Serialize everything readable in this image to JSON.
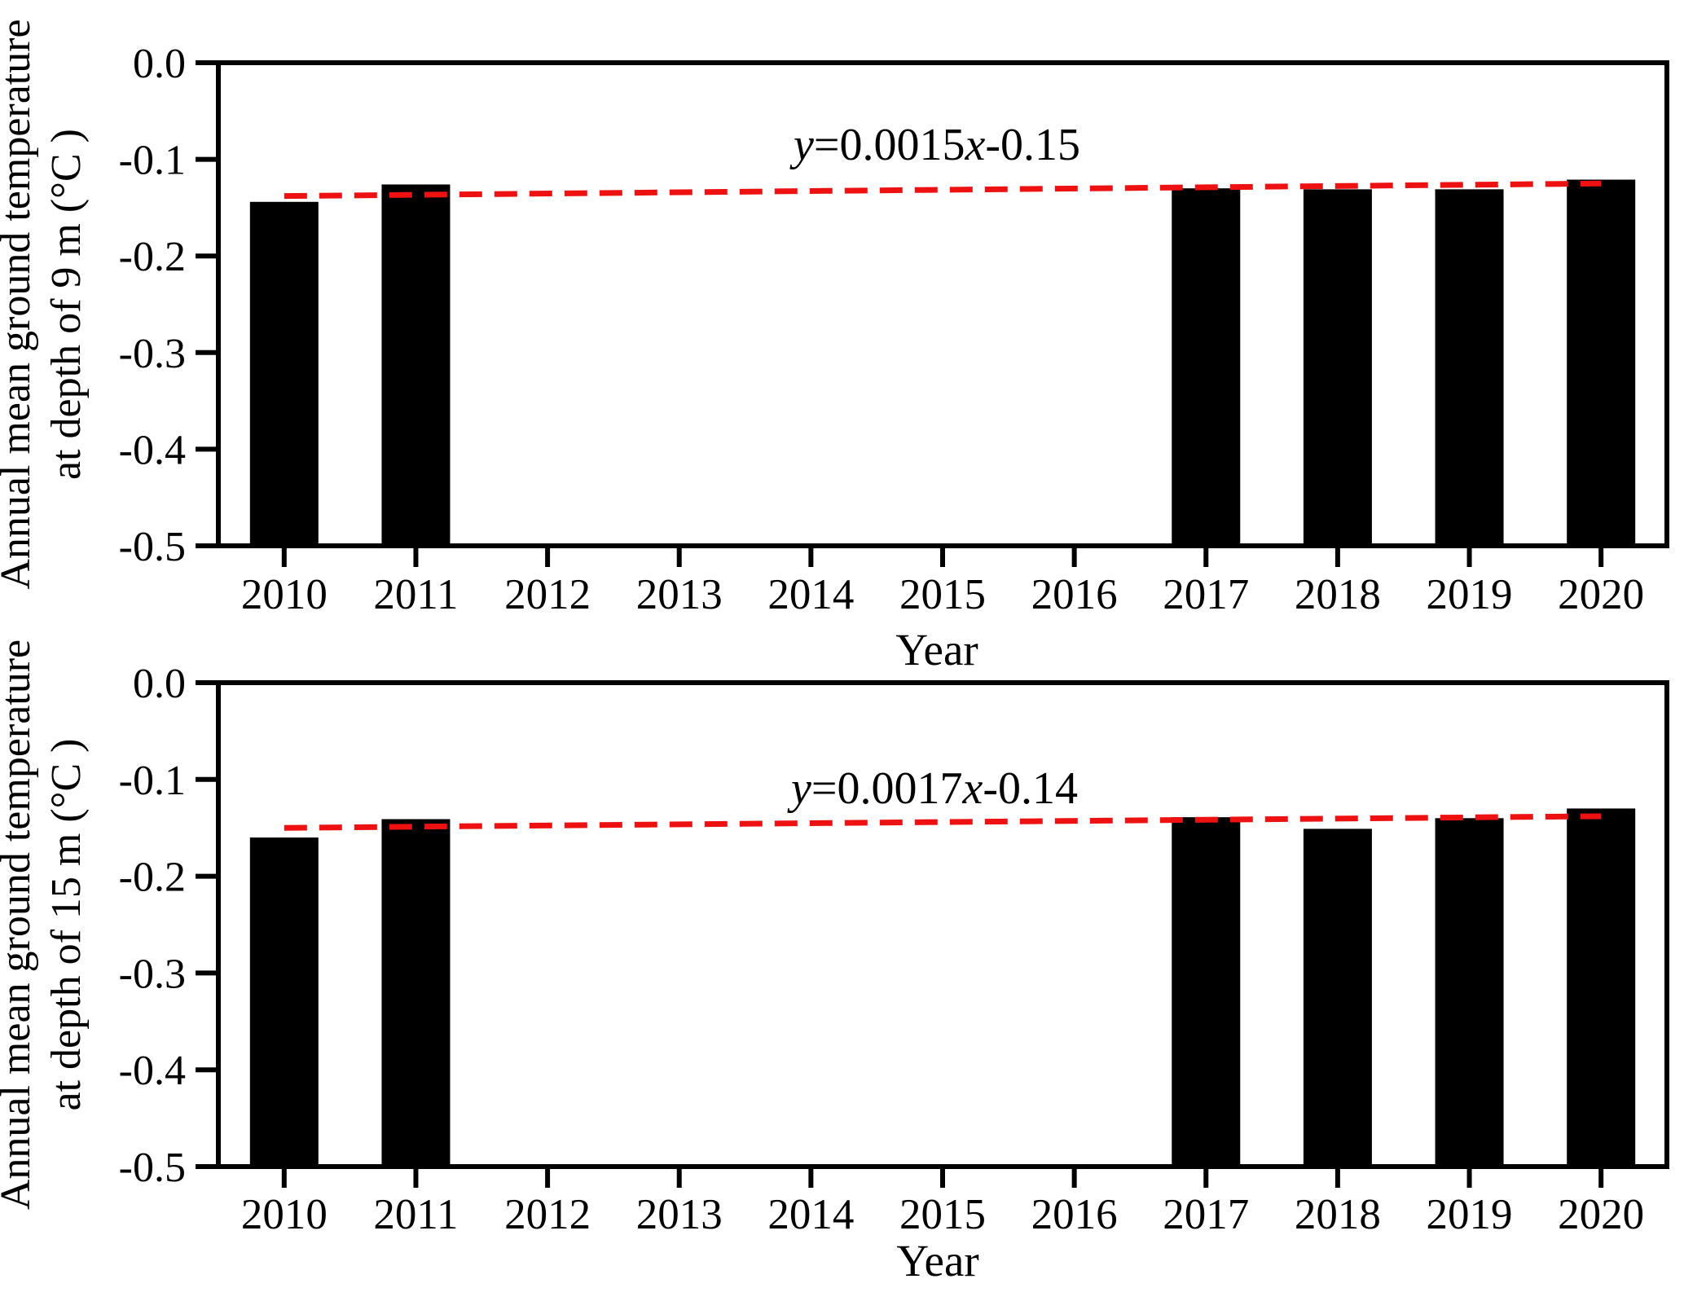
{
  "figure": {
    "background": "#ffffff",
    "bar_color": "#000000",
    "axis_color": "#000000",
    "trend_color": "#ee1111"
  },
  "chart_data": [
    {
      "type": "bar",
      "panel": "top",
      "ylabel_line1": "Annual mean ground temperature",
      "ylabel_line2": "at depth of 9 m (°C )",
      "xlabel": "Year",
      "categories": [
        "2010",
        "2011",
        "2012",
        "2013",
        "2014",
        "2015",
        "2016",
        "2017",
        "2018",
        "2019",
        "2020"
      ],
      "values": [
        -0.144,
        -0.126,
        null,
        null,
        null,
        null,
        null,
        -0.13,
        -0.131,
        -0.131,
        -0.121
      ],
      "equation": "y=0.0015x-0.15",
      "trend_line": {
        "x_start": "2010",
        "y_start": -0.138,
        "x_end": "2020",
        "y_end": -0.125
      },
      "ylim": [
        -0.5,
        0.0
      ],
      "yticks": [
        "0.0",
        "-0.1",
        "-0.2",
        "-0.3",
        "-0.4",
        "-0.5"
      ],
      "grid": "off",
      "legend": "none"
    },
    {
      "type": "bar",
      "panel": "bottom",
      "ylabel_line1": "Annual mean ground temperature",
      "ylabel_line2": "at depth of 15 m (°C )",
      "xlabel": "Year",
      "categories": [
        "2010",
        "2011",
        "2012",
        "2013",
        "2014",
        "2015",
        "2016",
        "2017",
        "2018",
        "2019",
        "2020"
      ],
      "values": [
        -0.16,
        -0.141,
        null,
        null,
        null,
        null,
        null,
        -0.139,
        -0.151,
        -0.14,
        -0.13
      ],
      "equation": "y=0.0017x-0.14",
      "trend_line": {
        "x_start": "2010",
        "y_start": -0.15,
        "x_end": "2020",
        "y_end": -0.138
      },
      "ylim": [
        -0.5,
        0.0
      ],
      "yticks": [
        "0.0",
        "-0.1",
        "-0.2",
        "-0.3",
        "-0.4",
        "-0.5"
      ],
      "grid": "off",
      "legend": "none"
    }
  ]
}
